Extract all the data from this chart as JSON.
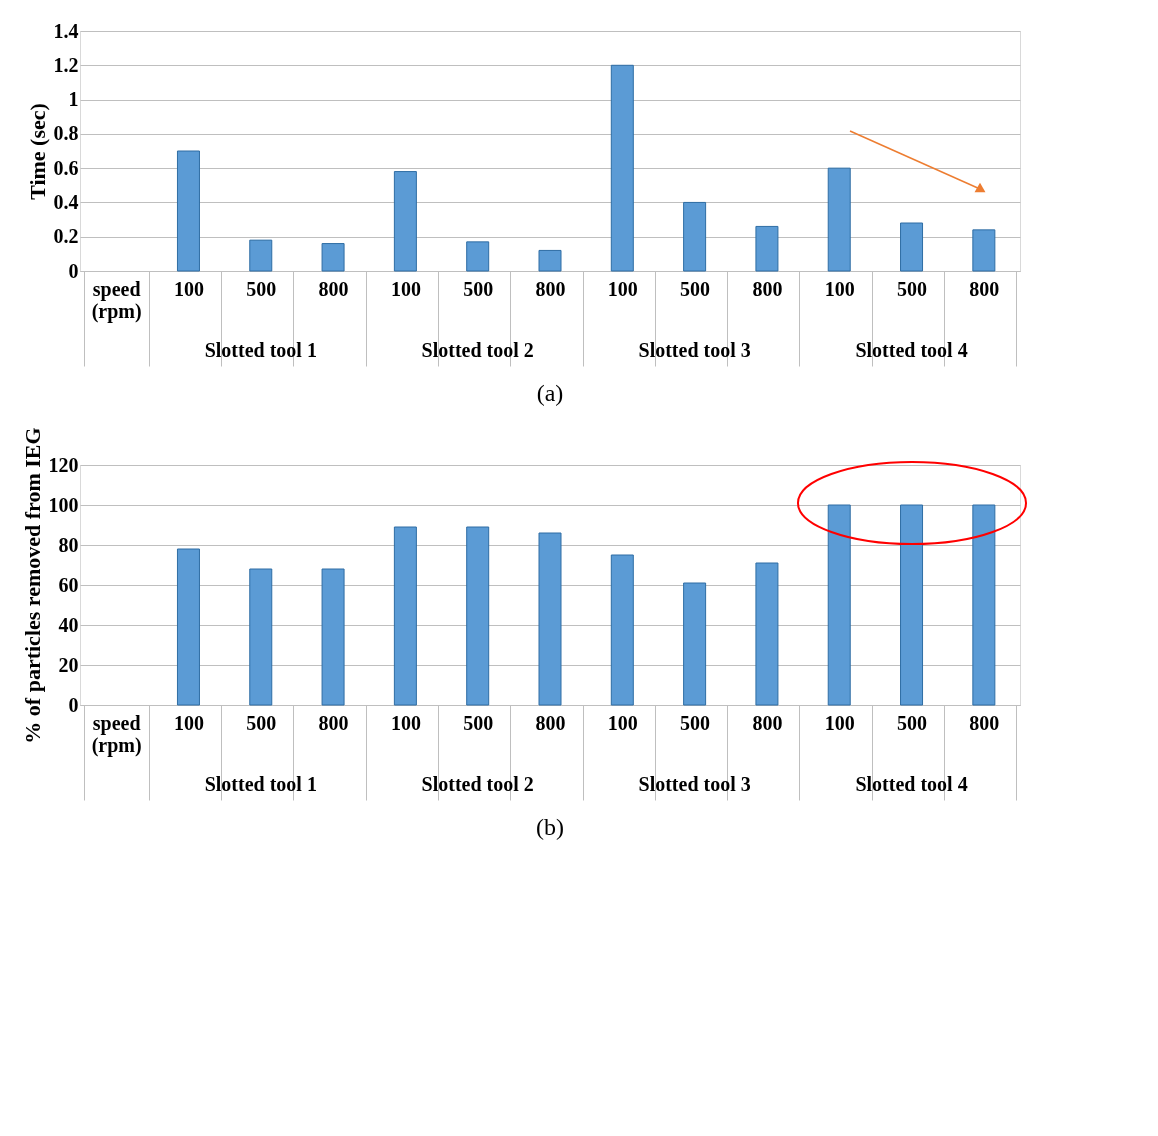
{
  "chart_data": [
    {
      "type": "bar",
      "title": "(a)",
      "ylabel": "Time (sec)",
      "categories": [
        "speed (rpm)",
        "100",
        "500",
        "800",
        "100",
        "500",
        "800",
        "100",
        "500",
        "800",
        "100",
        "500",
        "800"
      ],
      "values": [
        null,
        0.7,
        0.18,
        0.16,
        0.58,
        0.17,
        0.12,
        1.2,
        0.4,
        0.26,
        0.6,
        0.28,
        0.24
      ],
      "color": "#5b9bd5",
      "ylim": [
        0,
        1.4
      ],
      "yticks": [
        0,
        0.2,
        0.4,
        0.6,
        0.8,
        1,
        1.2,
        1.4
      ],
      "grid": "y",
      "annotations": [
        "Slotted tool 1",
        "Slotted tool 2",
        "Slotted tool 3",
        "Slotted tool 4"
      ]
    },
    {
      "type": "bar",
      "title": "(b)",
      "ylabel": "% of particles removed from IEG",
      "categories": [
        "speed (rpm)",
        "100",
        "500",
        "800",
        "100",
        "500",
        "800",
        "100",
        "500",
        "800",
        "100",
        "500",
        "800"
      ],
      "values": [
        null,
        78,
        68,
        68,
        89,
        89,
        86,
        75,
        61,
        71,
        100,
        100,
        100
      ],
      "color": "#5b9bd5",
      "ylim": [
        0,
        120
      ],
      "yticks": [
        0,
        20,
        40,
        60,
        80,
        100,
        120
      ],
      "grid": "y",
      "annotations": [
        "Slotted tool 1",
        "Slotted tool 2",
        "Slotted tool 3",
        "Slotted tool 4"
      ]
    }
  ]
}
